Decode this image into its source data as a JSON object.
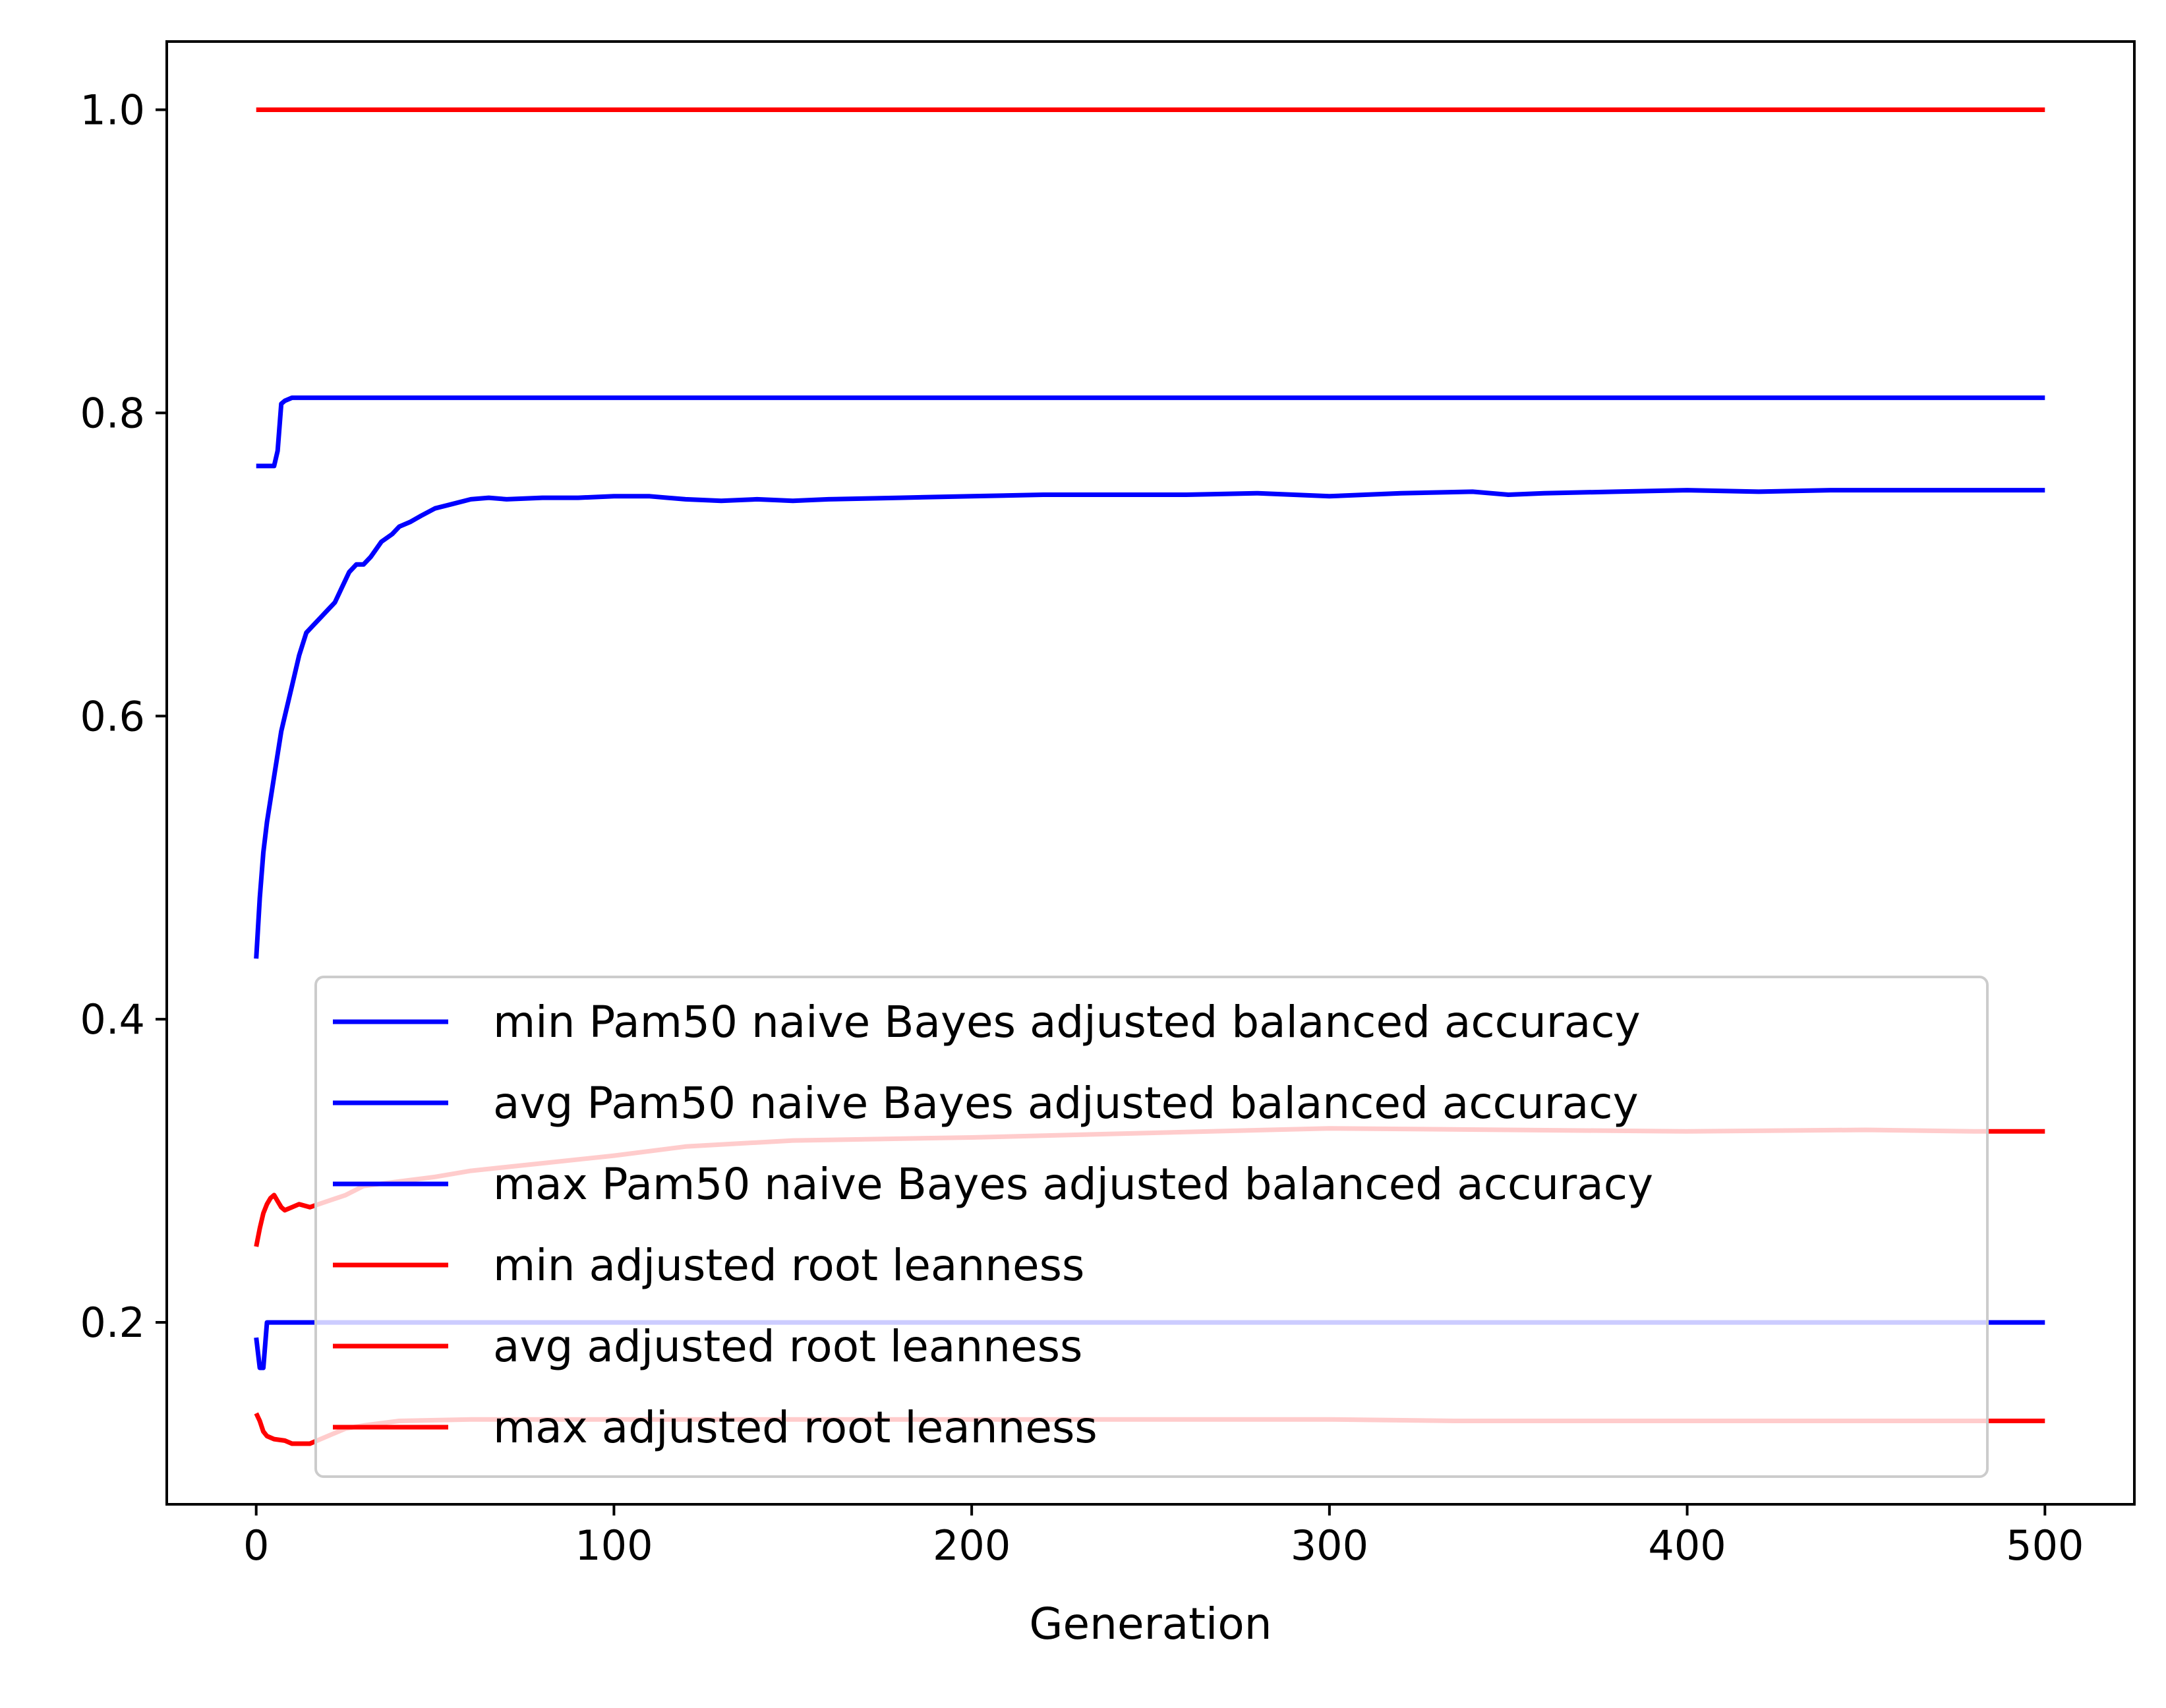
{
  "chart_data": {
    "type": "line",
    "title": "",
    "xlabel": "Generation",
    "ylabel": "",
    "xlim": [
      -25,
      525
    ],
    "ylim": [
      0.08,
      1.045
    ],
    "xticks": [
      0,
      100,
      200,
      300,
      400,
      500
    ],
    "yticks": [
      0.2,
      0.4,
      0.6,
      0.8,
      1.0
    ],
    "grid": false,
    "legend_placement": "lower-center",
    "series": [
      {
        "name": "min Pam50 naive Bayes adjusted balanced accuracy",
        "color": "#0000ff",
        "x": [
          0,
          1,
          2,
          3,
          4,
          500
        ],
        "y": [
          0.19,
          0.17,
          0.17,
          0.2,
          0.2,
          0.2
        ]
      },
      {
        "name": "avg Pam50 naive Bayes adjusted balanced accuracy",
        "color": "#0000ff",
        "x": [
          0,
          1,
          2,
          3,
          5,
          7,
          8,
          10,
          12,
          14,
          16,
          18,
          20,
          22,
          24,
          26,
          28,
          30,
          32,
          35,
          38,
          40,
          43,
          46,
          50,
          55,
          60,
          65,
          70,
          80,
          90,
          100,
          110,
          120,
          130,
          140,
          150,
          160,
          180,
          200,
          220,
          240,
          260,
          280,
          300,
          320,
          340,
          350,
          360,
          380,
          400,
          420,
          440,
          460,
          480,
          500
        ],
        "y": [
          0.44,
          0.48,
          0.51,
          0.53,
          0.56,
          0.59,
          0.6,
          0.62,
          0.64,
          0.655,
          0.66,
          0.665,
          0.67,
          0.675,
          0.685,
          0.695,
          0.7,
          0.7,
          0.705,
          0.715,
          0.72,
          0.725,
          0.728,
          0.732,
          0.737,
          0.74,
          0.743,
          0.744,
          0.743,
          0.744,
          0.744,
          0.745,
          0.745,
          0.743,
          0.742,
          0.743,
          0.742,
          0.743,
          0.744,
          0.745,
          0.746,
          0.746,
          0.746,
          0.747,
          0.745,
          0.747,
          0.748,
          0.746,
          0.747,
          0.748,
          0.749,
          0.748,
          0.749,
          0.749,
          0.749,
          0.749
        ]
      },
      {
        "name": "max Pam50 naive Bayes adjusted balanced accuracy",
        "color": "#0000ff",
        "x": [
          0,
          5,
          6,
          7,
          8,
          10,
          500
        ],
        "y": [
          0.765,
          0.765,
          0.775,
          0.806,
          0.808,
          0.81,
          0.81
        ]
      },
      {
        "name": "min adjusted root leanness",
        "color": "#ff0000",
        "x": [
          0,
          1,
          2,
          3,
          5,
          8,
          10,
          12,
          15,
          20,
          25,
          30,
          40,
          60,
          100,
          150,
          200,
          300,
          335,
          400,
          500
        ],
        "y": [
          0.14,
          0.135,
          0.128,
          0.125,
          0.123,
          0.122,
          0.12,
          0.12,
          0.12,
          0.125,
          0.13,
          0.132,
          0.135,
          0.136,
          0.136,
          0.136,
          0.136,
          0.136,
          0.135,
          0.135,
          0.135
        ]
      },
      {
        "name": "avg adjusted root leanness",
        "color": "#ff0000",
        "x": [
          0,
          1,
          2,
          3,
          4,
          5,
          6,
          7,
          8,
          10,
          12,
          15,
          20,
          25,
          30,
          40,
          50,
          60,
          80,
          100,
          120,
          150,
          200,
          250,
          300,
          350,
          400,
          450,
          480,
          500
        ],
        "y": [
          0.25,
          0.262,
          0.272,
          0.278,
          0.282,
          0.284,
          0.28,
          0.276,
          0.274,
          0.276,
          0.278,
          0.276,
          0.28,
          0.284,
          0.29,
          0.293,
          0.296,
          0.3,
          0.305,
          0.31,
          0.316,
          0.32,
          0.322,
          0.325,
          0.328,
          0.327,
          0.326,
          0.327,
          0.326,
          0.326
        ]
      },
      {
        "name": "max adjusted root leanness",
        "color": "#ff0000",
        "x": [
          0,
          500
        ],
        "y": [
          1.0,
          1.0
        ]
      }
    ]
  }
}
